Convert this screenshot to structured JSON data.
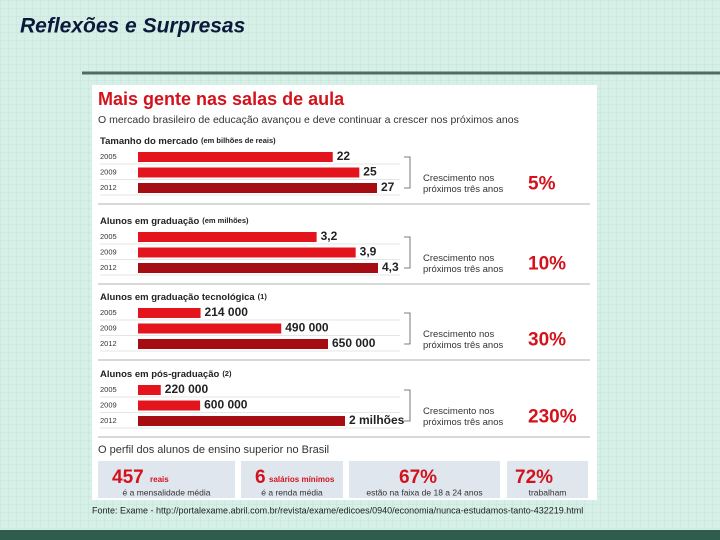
{
  "slide_title": "Reflexões e Surpresas",
  "infographic": {
    "title": "Mais gente nas salas de aula",
    "subtitle": "O mercado brasileiro de educação avançou e deve continuar a crescer nos próximos anos",
    "sections": [
      {
        "title": "Tamanho do mercado",
        "note": "(em bilhões de reais)",
        "categories": [
          "2005",
          "2009",
          "2012"
        ],
        "values": [
          22,
          25,
          27
        ],
        "value_labels": [
          "22",
          "25",
          "27"
        ],
        "growth_text": [
          "Crescimento nos",
          "próximos três anos"
        ],
        "growth": "5%"
      },
      {
        "title": "Alunos em graduação",
        "note": "(em milhões)",
        "categories": [
          "2005",
          "2009",
          "2012"
        ],
        "values": [
          3.2,
          3.9,
          4.3
        ],
        "value_labels": [
          "3,2",
          "3,9",
          "4,3"
        ],
        "growth_text": [
          "Crescimento nos",
          "próximos três anos"
        ],
        "growth": "10%"
      },
      {
        "title": "Alunos em graduação tecnológica",
        "note": "(1)",
        "categories": [
          "2005",
          "2009",
          "2012"
        ],
        "values": [
          214000,
          490000,
          650000
        ],
        "value_labels": [
          "214 000",
          "490 000",
          "650 000"
        ],
        "growth_text": [
          "Crescimento nos",
          "próximos três anos"
        ],
        "growth": "30%"
      },
      {
        "title": "Alunos em pós-graduação",
        "note": "(2)",
        "categories": [
          "2005",
          "2009",
          "2012"
        ],
        "values": [
          220000,
          600000,
          2000000
        ],
        "value_labels": [
          "220 000",
          "600 000",
          "2 milhões"
        ],
        "growth_text": [
          "Crescimento nos",
          "próximos três anos"
        ],
        "growth": "230%"
      }
    ],
    "profile_title": "O perfil dos alunos de ensino superior no Brasil",
    "profile": [
      {
        "value": "457",
        "unit": "reais",
        "caption": "é a mensalidade média"
      },
      {
        "value": "6",
        "unit": "salários mínimos",
        "caption": "é a renda média"
      },
      {
        "value": "67%",
        "unit": "",
        "caption": "estão na faixa de 18 a 24 anos"
      },
      {
        "value": "72%",
        "unit": "",
        "caption": "trabalham"
      }
    ]
  },
  "source": "Fonte: Exame - http://portalexame.abril.com.br/revista/exame/edicoes/0940/economia/nunca-estudamos-tanto-432219.html"
}
